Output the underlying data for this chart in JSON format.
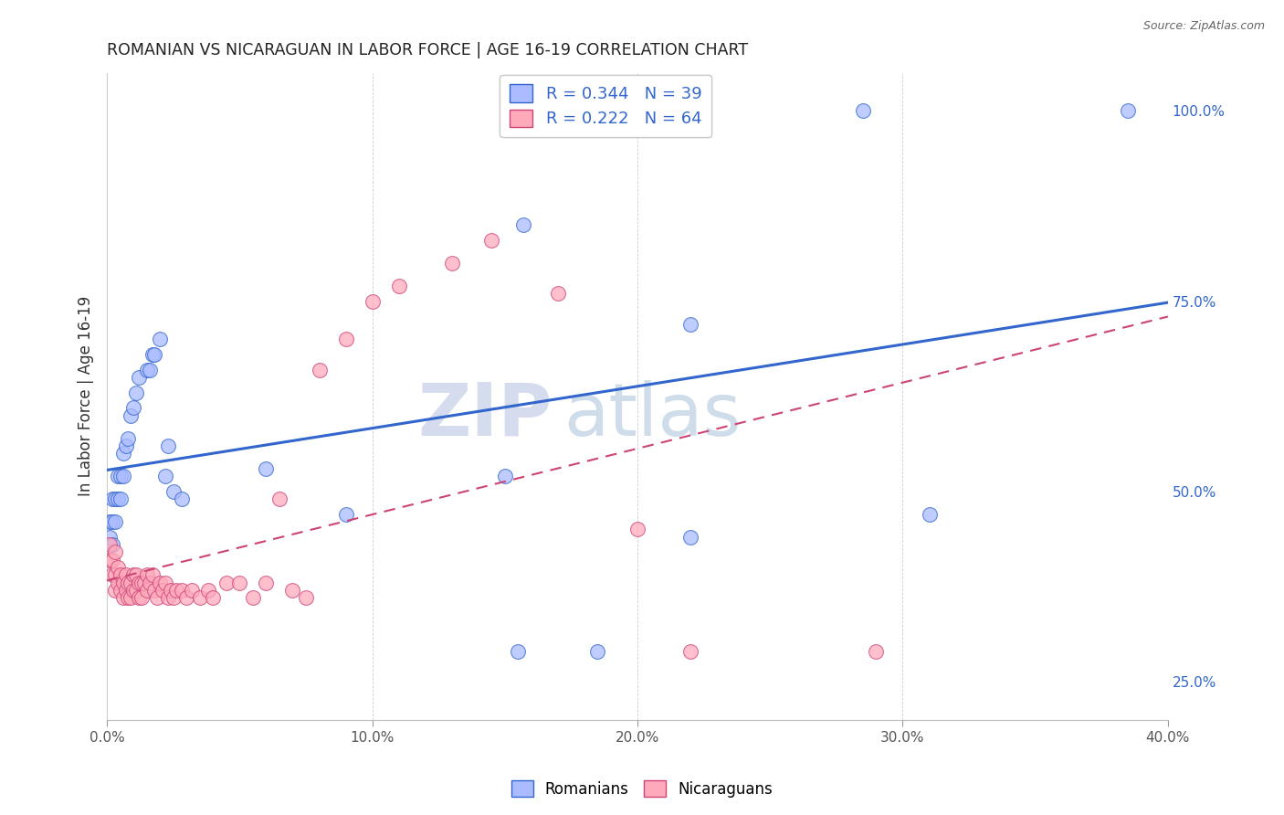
{
  "title": "ROMANIAN VS NICARAGUAN IN LABOR FORCE | AGE 16-19 CORRELATION CHART",
  "source": "Source: ZipAtlas.com",
  "ylabel": "In Labor Force | Age 16-19",
  "xlim": [
    0.0,
    0.4
  ],
  "ylim": [
    0.2,
    1.05
  ],
  "xticks": [
    0.0,
    0.1,
    0.2,
    0.3,
    0.4
  ],
  "xticklabels": [
    "0.0%",
    "10.0%",
    "20.0%",
    "30.0%",
    "40.0%"
  ],
  "yticks_right": [
    0.25,
    0.5,
    0.75,
    1.0
  ],
  "yticklabels_right": [
    "25.0%",
    "50.0%",
    "75.0%",
    "100.0%"
  ],
  "legend_r1": "R = 0.344   N = 39",
  "legend_r2": "R = 0.222   N = 64",
  "watermark_top": "ZIP",
  "watermark_bot": "atlas",
  "watermark_color_top": "#aabbdd",
  "watermark_color_bot": "#88aacc",
  "dot_color_romanian": "#aabbff",
  "dot_color_nicaraguan": "#ffaabb",
  "line_color_romanian": "#3366cc",
  "line_color_nicaraguan": "#cc4477",
  "romanian_x": [
    0.001,
    0.001,
    0.002,
    0.002,
    0.002,
    0.003,
    0.003,
    0.004,
    0.004,
    0.005,
    0.005,
    0.006,
    0.006,
    0.007,
    0.008,
    0.009,
    0.01,
    0.011,
    0.012,
    0.015,
    0.016,
    0.017,
    0.018,
    0.02,
    0.022,
    0.023,
    0.025,
    0.028,
    0.06,
    0.09,
    0.15,
    0.155,
    0.185,
    0.22,
    0.285,
    0.31,
    0.385,
    0.157,
    0.22
  ],
  "romanian_y": [
    0.44,
    0.46,
    0.43,
    0.46,
    0.49,
    0.46,
    0.49,
    0.49,
    0.52,
    0.49,
    0.52,
    0.52,
    0.55,
    0.56,
    0.57,
    0.6,
    0.61,
    0.63,
    0.65,
    0.66,
    0.66,
    0.68,
    0.68,
    0.7,
    0.52,
    0.56,
    0.5,
    0.49,
    0.53,
    0.47,
    0.52,
    0.29,
    0.29,
    0.72,
    1.0,
    0.47,
    1.0,
    0.85,
    0.44
  ],
  "nicaraguan_x": [
    0.001,
    0.001,
    0.002,
    0.002,
    0.003,
    0.003,
    0.003,
    0.004,
    0.004,
    0.005,
    0.005,
    0.006,
    0.006,
    0.007,
    0.007,
    0.008,
    0.008,
    0.009,
    0.009,
    0.01,
    0.01,
    0.011,
    0.011,
    0.012,
    0.012,
    0.013,
    0.013,
    0.014,
    0.015,
    0.015,
    0.016,
    0.017,
    0.018,
    0.019,
    0.02,
    0.021,
    0.022,
    0.023,
    0.024,
    0.025,
    0.026,
    0.028,
    0.03,
    0.032,
    0.035,
    0.038,
    0.04,
    0.045,
    0.05,
    0.055,
    0.06,
    0.065,
    0.07,
    0.075,
    0.08,
    0.09,
    0.1,
    0.11,
    0.13,
    0.145,
    0.17,
    0.2,
    0.22,
    0.29
  ],
  "nicaraguan_y": [
    0.41,
    0.43,
    0.39,
    0.41,
    0.37,
    0.39,
    0.42,
    0.38,
    0.4,
    0.37,
    0.39,
    0.36,
    0.38,
    0.37,
    0.39,
    0.36,
    0.38,
    0.36,
    0.38,
    0.37,
    0.39,
    0.37,
    0.39,
    0.36,
    0.38,
    0.36,
    0.38,
    0.38,
    0.37,
    0.39,
    0.38,
    0.39,
    0.37,
    0.36,
    0.38,
    0.37,
    0.38,
    0.36,
    0.37,
    0.36,
    0.37,
    0.37,
    0.36,
    0.37,
    0.36,
    0.37,
    0.36,
    0.38,
    0.38,
    0.36,
    0.38,
    0.49,
    0.37,
    0.36,
    0.66,
    0.7,
    0.75,
    0.77,
    0.8,
    0.83,
    0.76,
    0.45,
    0.29,
    0.29
  ]
}
